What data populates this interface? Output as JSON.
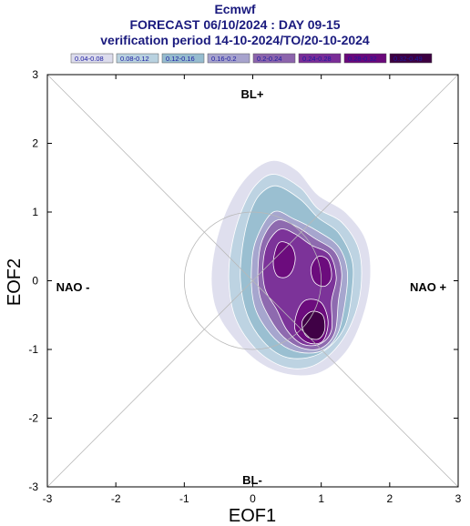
{
  "chart_data": {
    "type": "heatmap",
    "title": "Ecmwf",
    "subtitle": "FORECAST 06/10/2024 : DAY 09-15",
    "subtitle2": "verification period 14-10-2024/TO/20-10-2024",
    "xlabel": "EOF1",
    "ylabel": "EOF2",
    "xlim": [
      -3,
      3
    ],
    "ylim": [
      -3,
      3
    ],
    "x_ticks": [
      "-3",
      "-2",
      "-1",
      "0",
      "1",
      "2",
      "3"
    ],
    "y_ticks": [
      "-3",
      "-2",
      "-1",
      "0",
      "1",
      "2",
      "3"
    ],
    "grid": false,
    "legend_position": "top",
    "regime_labels": {
      "top": "BL+",
      "bottom": "BL-",
      "left": "NAO -",
      "right": "NAO +"
    },
    "unit_circle_radius": 1,
    "density_levels": [
      {
        "label": "0.04-0.08",
        "color": "#dcdcec"
      },
      {
        "label": "0.08-0.12",
        "color": "#b9d2e0"
      },
      {
        "label": "0.12-0.16",
        "color": "#96bccf"
      },
      {
        "label": "0.16-0.2",
        "color": "#a7a3cd"
      },
      {
        "label": "0.2-0.24",
        "color": "#8c64ac"
      },
      {
        "label": "0.24-0.28",
        "color": "#7a2d97"
      },
      {
        "label": "0.28-0.32",
        "color": "#6a087a"
      },
      {
        "label": "0.32-0.49",
        "color": "#3c0040"
      }
    ],
    "density_contours": [
      {
        "level": 0,
        "points": [
          [
            0.3,
            1.75
          ],
          [
            0.65,
            1.6
          ],
          [
            0.95,
            1.25
          ],
          [
            1.35,
            1.0
          ],
          [
            1.65,
            0.6
          ],
          [
            1.72,
            0.05
          ],
          [
            1.6,
            -0.55
          ],
          [
            1.35,
            -1.05
          ],
          [
            0.95,
            -1.35
          ],
          [
            0.45,
            -1.35
          ],
          [
            0.0,
            -1.12
          ],
          [
            -0.45,
            -0.6
          ],
          [
            -0.6,
            -0.1
          ],
          [
            -0.55,
            0.5
          ],
          [
            -0.35,
            1.1
          ],
          [
            -0.05,
            1.55
          ]
        ]
      },
      {
        "level": 1,
        "points": [
          [
            0.32,
            1.55
          ],
          [
            0.7,
            1.35
          ],
          [
            0.95,
            1.05
          ],
          [
            1.3,
            0.85
          ],
          [
            1.55,
            0.45
          ],
          [
            1.58,
            -0.1
          ],
          [
            1.45,
            -0.6
          ],
          [
            1.2,
            -1.0
          ],
          [
            0.85,
            -1.25
          ],
          [
            0.45,
            -1.25
          ],
          [
            0.05,
            -1.0
          ],
          [
            -0.25,
            -0.55
          ],
          [
            -0.35,
            0.0
          ],
          [
            -0.3,
            0.55
          ],
          [
            -0.15,
            1.05
          ],
          [
            0.05,
            1.4
          ]
        ]
      },
      {
        "level": 2,
        "points": [
          [
            0.35,
            1.38
          ],
          [
            0.7,
            1.18
          ],
          [
            0.95,
            0.92
          ],
          [
            1.25,
            0.7
          ],
          [
            1.45,
            0.3
          ],
          [
            1.45,
            -0.15
          ],
          [
            1.35,
            -0.65
          ],
          [
            1.1,
            -0.98
          ],
          [
            0.8,
            -1.12
          ],
          [
            0.45,
            -1.1
          ],
          [
            0.15,
            -0.88
          ],
          [
            -0.08,
            -0.5
          ],
          [
            -0.18,
            0.0
          ],
          [
            -0.15,
            0.5
          ],
          [
            -0.05,
            0.95
          ],
          [
            0.1,
            1.25
          ]
        ]
      },
      {
        "level": 3,
        "points": [
          [
            0.3,
            1.0
          ],
          [
            0.6,
            0.9
          ],
          [
            0.95,
            0.72
          ],
          [
            1.25,
            0.5
          ],
          [
            1.38,
            0.15
          ],
          [
            1.35,
            -0.3
          ],
          [
            1.25,
            -0.75
          ],
          [
            1.05,
            -1.0
          ],
          [
            0.75,
            -1.05
          ],
          [
            0.45,
            -0.95
          ],
          [
            0.2,
            -0.7
          ],
          [
            0.02,
            -0.35
          ],
          [
            -0.02,
            0.15
          ],
          [
            0.05,
            0.6
          ]
        ]
      },
      {
        "level": 4,
        "points": [
          [
            0.35,
            0.88
          ],
          [
            0.62,
            0.8
          ],
          [
            0.9,
            0.62
          ],
          [
            1.2,
            0.42
          ],
          [
            1.3,
            0.1
          ],
          [
            1.25,
            -0.3
          ],
          [
            1.2,
            -0.75
          ],
          [
            1.0,
            -0.98
          ],
          [
            0.72,
            -0.98
          ],
          [
            0.45,
            -0.82
          ],
          [
            0.25,
            -0.55
          ],
          [
            0.1,
            -0.2
          ],
          [
            0.08,
            0.25
          ],
          [
            0.15,
            0.62
          ]
        ]
      },
      {
        "level": 5,
        "points": [
          [
            0.4,
            0.75
          ],
          [
            0.62,
            0.68
          ],
          [
            0.85,
            0.52
          ],
          [
            1.12,
            0.38
          ],
          [
            1.22,
            0.05
          ],
          [
            1.15,
            -0.3
          ],
          [
            1.15,
            -0.72
          ],
          [
            0.98,
            -0.92
          ],
          [
            0.72,
            -0.92
          ],
          [
            0.5,
            -0.72
          ],
          [
            0.35,
            -0.42
          ],
          [
            0.18,
            -0.12
          ],
          [
            0.15,
            0.25
          ],
          [
            0.22,
            0.55
          ]
        ]
      },
      {
        "level": 6,
        "points": [
          [
            0.38,
            0.55
          ],
          [
            0.55,
            0.52
          ],
          [
            0.62,
            0.35
          ],
          [
            0.58,
            0.15
          ],
          [
            0.48,
            0.05
          ],
          [
            0.35,
            0.08
          ],
          [
            0.3,
            0.28
          ]
        ]
      },
      {
        "level": 6,
        "points": [
          [
            0.95,
            0.35
          ],
          [
            1.1,
            0.3
          ],
          [
            1.15,
            0.05
          ],
          [
            1.05,
            -0.08
          ],
          [
            0.9,
            -0.02
          ],
          [
            0.85,
            0.18
          ]
        ]
      },
      {
        "level": 6,
        "points": [
          [
            0.78,
            -0.28
          ],
          [
            1.0,
            -0.32
          ],
          [
            1.1,
            -0.6
          ],
          [
            1.02,
            -0.88
          ],
          [
            0.8,
            -0.9
          ],
          [
            0.62,
            -0.72
          ],
          [
            0.65,
            -0.45
          ]
        ]
      },
      {
        "level": 7,
        "points": [
          [
            0.85,
            -0.45
          ],
          [
            1.02,
            -0.5
          ],
          [
            1.05,
            -0.72
          ],
          [
            0.95,
            -0.85
          ],
          [
            0.78,
            -0.8
          ],
          [
            0.72,
            -0.6
          ]
        ]
      }
    ]
  }
}
